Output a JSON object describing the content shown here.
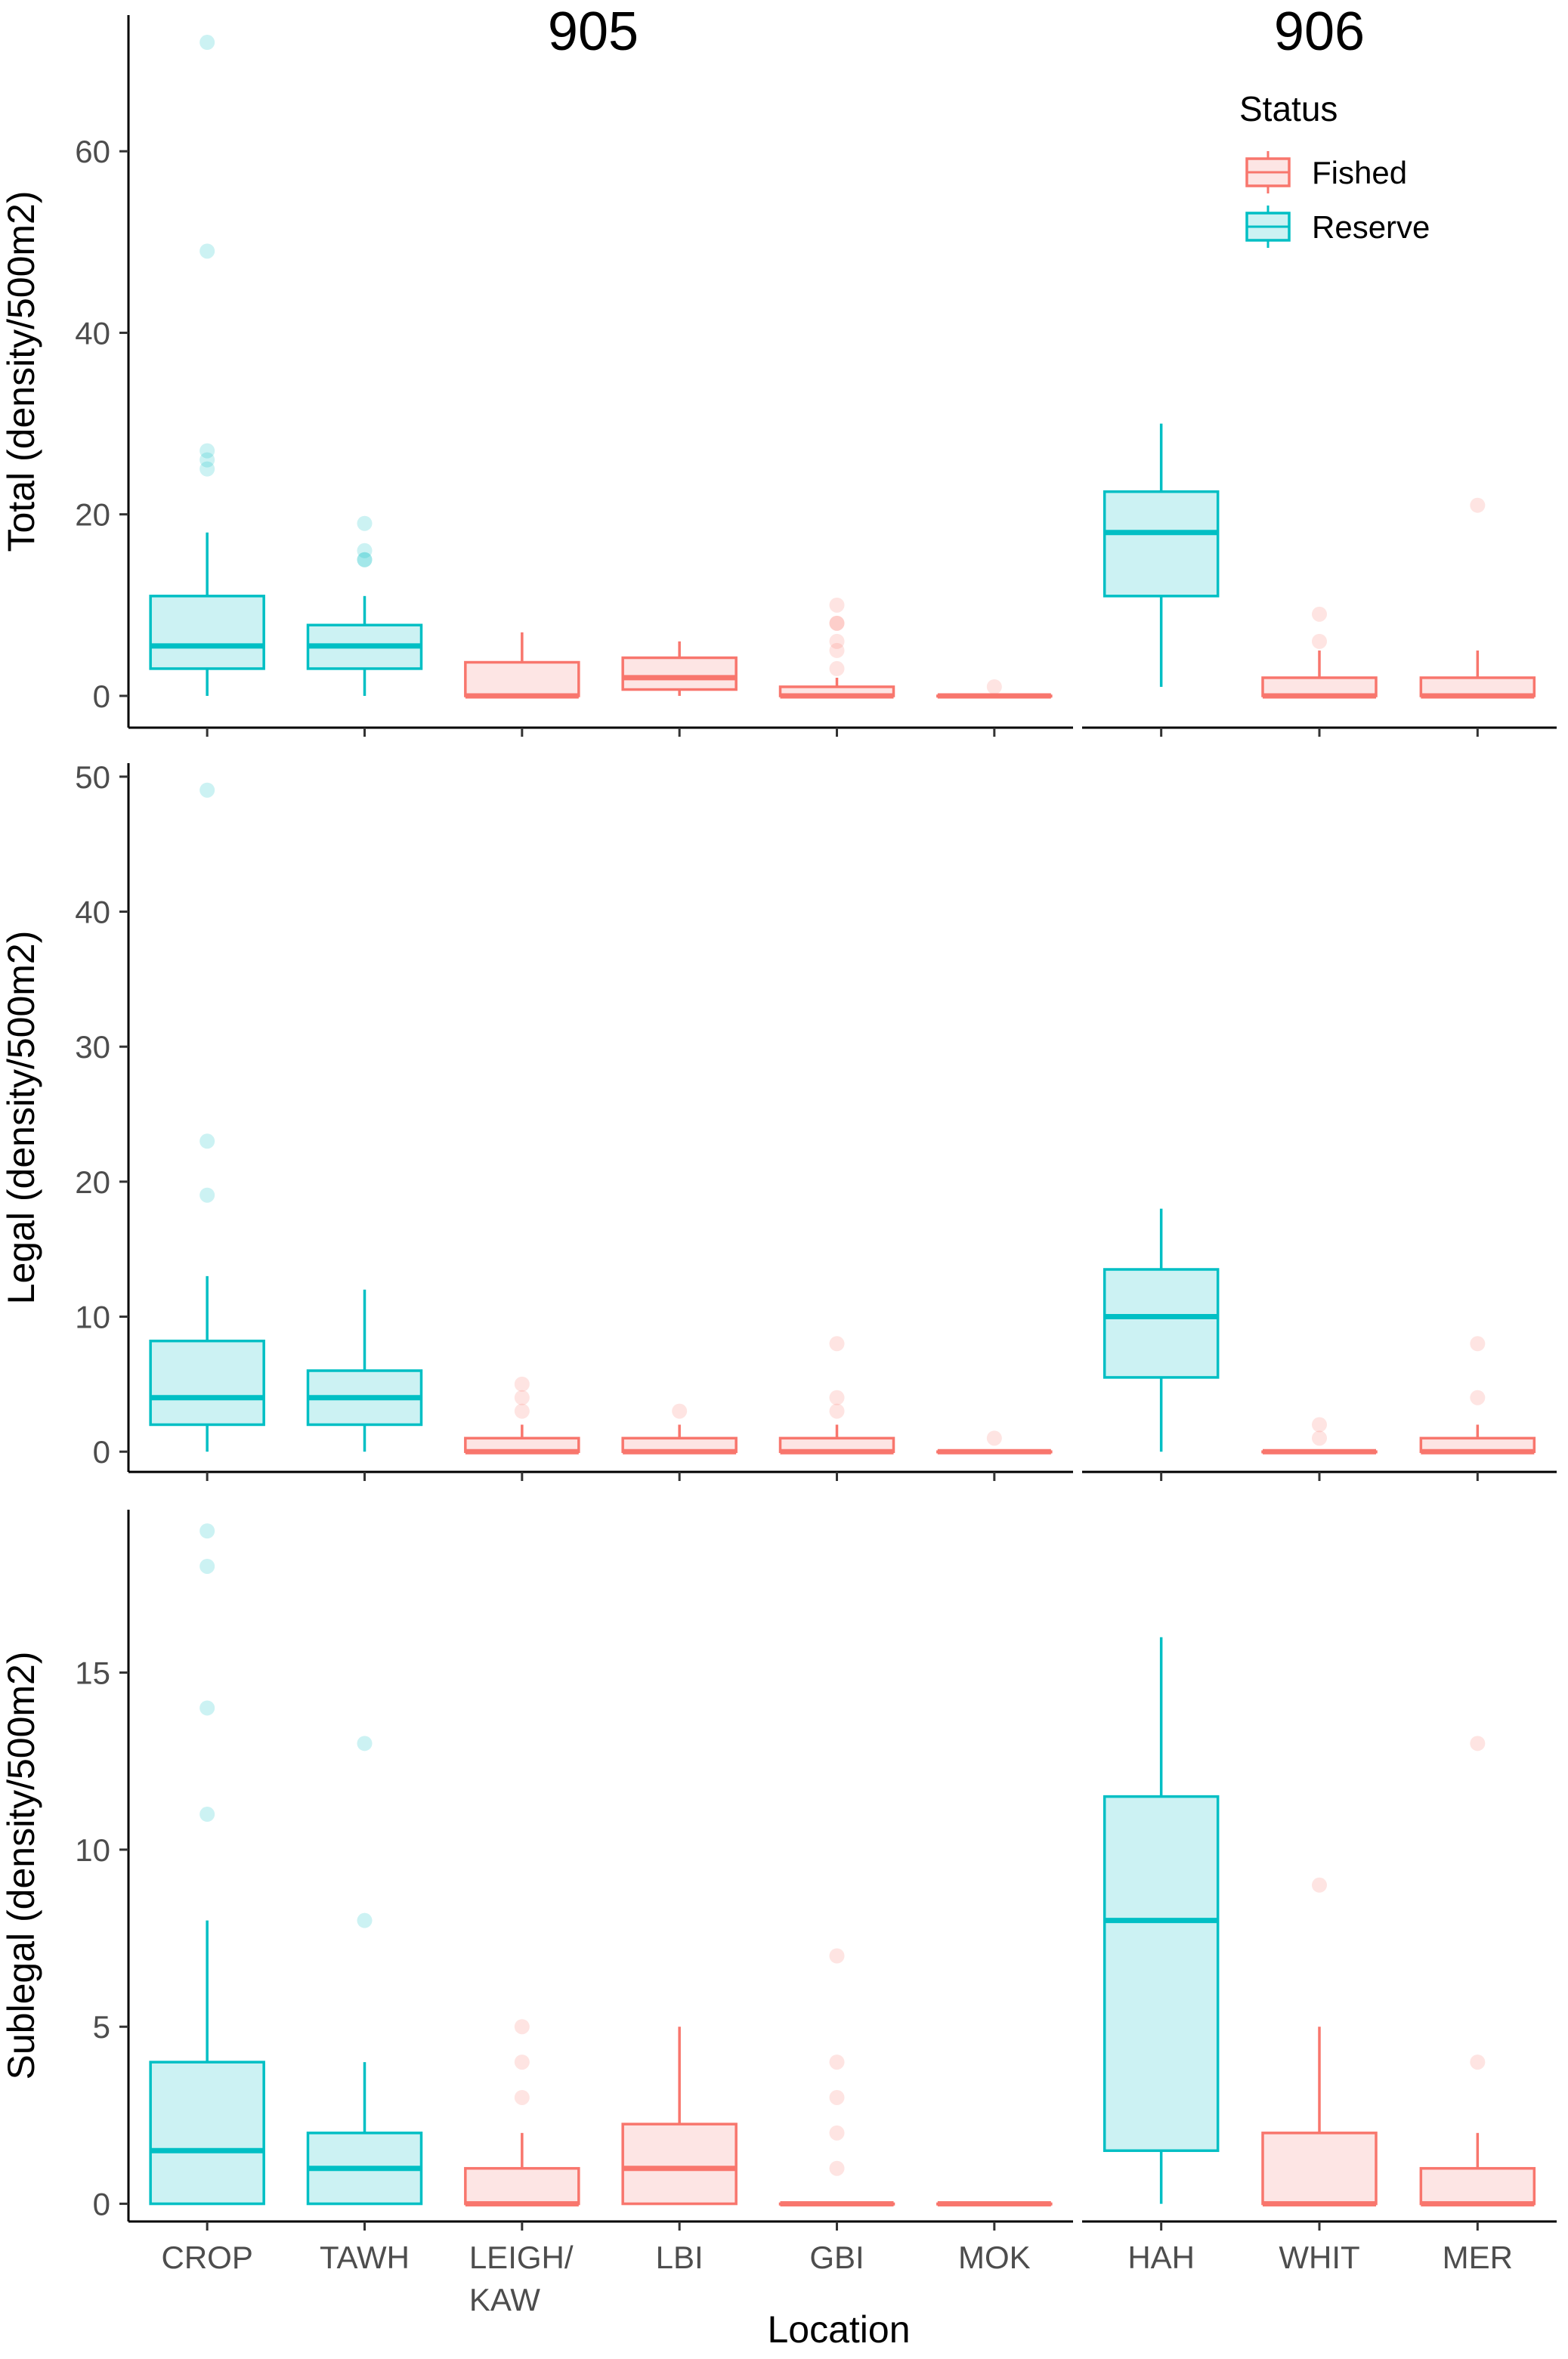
{
  "chart_data": {
    "type": "boxplot",
    "facet_columns": [
      "905",
      "906"
    ],
    "categories": {
      "905": [
        "CROP",
        "TAWH",
        "LEIGH/\nKAW",
        "LBI",
        "GBI",
        "MOK"
      ],
      "906": [
        "HAH",
        "WHIT",
        "MER"
      ]
    },
    "xlabel": "Location",
    "legend": {
      "title": "Status",
      "position": "top-right",
      "entries": [
        {
          "label": "Fished",
          "color": "#F8766D",
          "fill": "#FDE5E4"
        },
        {
          "label": "Reserve",
          "color": "#00BFC4",
          "fill": "#CCF2F3"
        }
      ]
    },
    "rows": [
      {
        "ylabel": "Total (density/500m2)",
        "ylim": [
          -3.5,
          75
        ],
        "yticks": [
          0,
          20,
          40,
          60
        ],
        "boxes": [
          {
            "facet": "905",
            "category": "CROP",
            "status": "Reserve",
            "q1": 3,
            "median": 5.5,
            "q3": 11,
            "whisker_low": 0,
            "whisker_high": 18,
            "outliers": [
              25,
              26,
              27,
              49,
              72
            ]
          },
          {
            "facet": "905",
            "category": "TAWH",
            "status": "Reserve",
            "q1": 3,
            "median": 5.5,
            "q3": 7.8,
            "whisker_low": 0,
            "whisker_high": 11,
            "outliers": [
              15,
              15,
              16,
              19
            ]
          },
          {
            "facet": "905",
            "category": "LEIGH/\nKAW",
            "status": "Fished",
            "q1": 0,
            "median": 0,
            "q3": 3.7,
            "whisker_low": 0,
            "whisker_high": 7,
            "outliers": []
          },
          {
            "facet": "905",
            "category": "LBI",
            "status": "Fished",
            "q1": 0.7,
            "median": 2,
            "q3": 4.2,
            "whisker_low": 0,
            "whisker_high": 6,
            "outliers": []
          },
          {
            "facet": "905",
            "category": "GBI",
            "status": "Fished",
            "q1": 0,
            "median": 0,
            "q3": 1,
            "whisker_low": 0,
            "whisker_high": 2,
            "outliers": [
              3,
              5,
              6,
              8,
              8,
              10
            ]
          },
          {
            "facet": "905",
            "category": "MOK",
            "status": "Fished",
            "q1": 0,
            "median": 0,
            "q3": 0,
            "whisker_low": 0,
            "whisker_high": 0,
            "outliers": [
              1
            ]
          },
          {
            "facet": "906",
            "category": "HAH",
            "status": "Reserve",
            "q1": 11,
            "median": 18,
            "q3": 22.5,
            "whisker_low": 1,
            "whisker_high": 30,
            "outliers": []
          },
          {
            "facet": "906",
            "category": "WHIT",
            "status": "Fished",
            "q1": 0,
            "median": 0,
            "q3": 2,
            "whisker_low": 0,
            "whisker_high": 5,
            "outliers": [
              6,
              9
            ]
          },
          {
            "facet": "906",
            "category": "MER",
            "status": "Fished",
            "q1": 0,
            "median": 0,
            "q3": 2,
            "whisker_low": 0,
            "whisker_high": 5,
            "outliers": [
              21
            ]
          }
        ]
      },
      {
        "ylabel": "Legal (density/500m2)",
        "ylim": [
          -1.5,
          51
        ],
        "yticks": [
          0,
          10,
          20,
          30,
          40,
          50
        ],
        "boxes": [
          {
            "facet": "905",
            "category": "CROP",
            "status": "Reserve",
            "q1": 2,
            "median": 4,
            "q3": 8.2,
            "whisker_low": 0,
            "whisker_high": 13,
            "outliers": [
              19,
              23,
              49
            ]
          },
          {
            "facet": "905",
            "category": "TAWH",
            "status": "Reserve",
            "q1": 2,
            "median": 4,
            "q3": 6,
            "whisker_low": 0,
            "whisker_high": 12,
            "outliers": []
          },
          {
            "facet": "905",
            "category": "LEIGH/\nKAW",
            "status": "Fished",
            "q1": 0,
            "median": 0,
            "q3": 1,
            "whisker_low": 0,
            "whisker_high": 2,
            "outliers": [
              3,
              4,
              5
            ]
          },
          {
            "facet": "905",
            "category": "LBI",
            "status": "Fished",
            "q1": 0,
            "median": 0,
            "q3": 1,
            "whisker_low": 0,
            "whisker_high": 2,
            "outliers": [
              3
            ]
          },
          {
            "facet": "905",
            "category": "GBI",
            "status": "Fished",
            "q1": 0,
            "median": 0,
            "q3": 1,
            "whisker_low": 0,
            "whisker_high": 2,
            "outliers": [
              3,
              4,
              8
            ]
          },
          {
            "facet": "905",
            "category": "MOK",
            "status": "Fished",
            "q1": 0,
            "median": 0,
            "q3": 0,
            "whisker_low": 0,
            "whisker_high": 0,
            "outliers": [
              1
            ]
          },
          {
            "facet": "906",
            "category": "HAH",
            "status": "Reserve",
            "q1": 5.5,
            "median": 10,
            "q3": 13.5,
            "whisker_low": 0,
            "whisker_high": 18,
            "outliers": []
          },
          {
            "facet": "906",
            "category": "WHIT",
            "status": "Fished",
            "q1": 0,
            "median": 0,
            "q3": 0,
            "whisker_low": 0,
            "whisker_high": 0,
            "outliers": [
              1,
              2
            ]
          },
          {
            "facet": "906",
            "category": "MER",
            "status": "Fished",
            "q1": 0,
            "median": 0,
            "q3": 1,
            "whisker_low": 0,
            "whisker_high": 2,
            "outliers": [
              4,
              8
            ]
          }
        ]
      },
      {
        "ylabel": "Sublegal (density/500m2)",
        "ylim": [
          -0.5,
          19.6
        ],
        "yticks": [
          0,
          5,
          10,
          15
        ],
        "boxes": [
          {
            "facet": "905",
            "category": "CROP",
            "status": "Reserve",
            "q1": 0,
            "median": 1.5,
            "q3": 4,
            "whisker_low": 0,
            "whisker_high": 8,
            "outliers": [
              11,
              14,
              18,
              19
            ]
          },
          {
            "facet": "905",
            "category": "TAWH",
            "status": "Reserve",
            "q1": 0,
            "median": 1,
            "q3": 2,
            "whisker_low": 0,
            "whisker_high": 4,
            "outliers": [
              8,
              13
            ]
          },
          {
            "facet": "905",
            "category": "LEIGH/\nKAW",
            "status": "Fished",
            "q1": 0,
            "median": 0,
            "q3": 1,
            "whisker_low": 0,
            "whisker_high": 2,
            "outliers": [
              3,
              4,
              5
            ]
          },
          {
            "facet": "905",
            "category": "LBI",
            "status": "Fished",
            "q1": 0,
            "median": 1,
            "q3": 2.25,
            "whisker_low": 0,
            "whisker_high": 5,
            "outliers": []
          },
          {
            "facet": "905",
            "category": "GBI",
            "status": "Fished",
            "q1": 0,
            "median": 0,
            "q3": 0,
            "whisker_low": 0,
            "whisker_high": 0,
            "outliers": [
              1,
              2,
              3,
              4,
              7
            ]
          },
          {
            "facet": "905",
            "category": "MOK",
            "status": "Fished",
            "q1": 0,
            "median": 0,
            "q3": 0,
            "whisker_low": 0,
            "whisker_high": 0,
            "outliers": []
          },
          {
            "facet": "906",
            "category": "HAH",
            "status": "Reserve",
            "q1": 1.5,
            "median": 8,
            "q3": 11.5,
            "whisker_low": 0,
            "whisker_high": 16,
            "outliers": []
          },
          {
            "facet": "906",
            "category": "WHIT",
            "status": "Fished",
            "q1": 0,
            "median": 0,
            "q3": 2,
            "whisker_low": 0,
            "whisker_high": 5,
            "outliers": [
              9
            ]
          },
          {
            "facet": "906",
            "category": "MER",
            "status": "Fished",
            "q1": 0,
            "median": 0,
            "q3": 1,
            "whisker_low": 0,
            "whisker_high": 2,
            "outliers": [
              4,
              13
            ]
          }
        ]
      }
    ]
  }
}
